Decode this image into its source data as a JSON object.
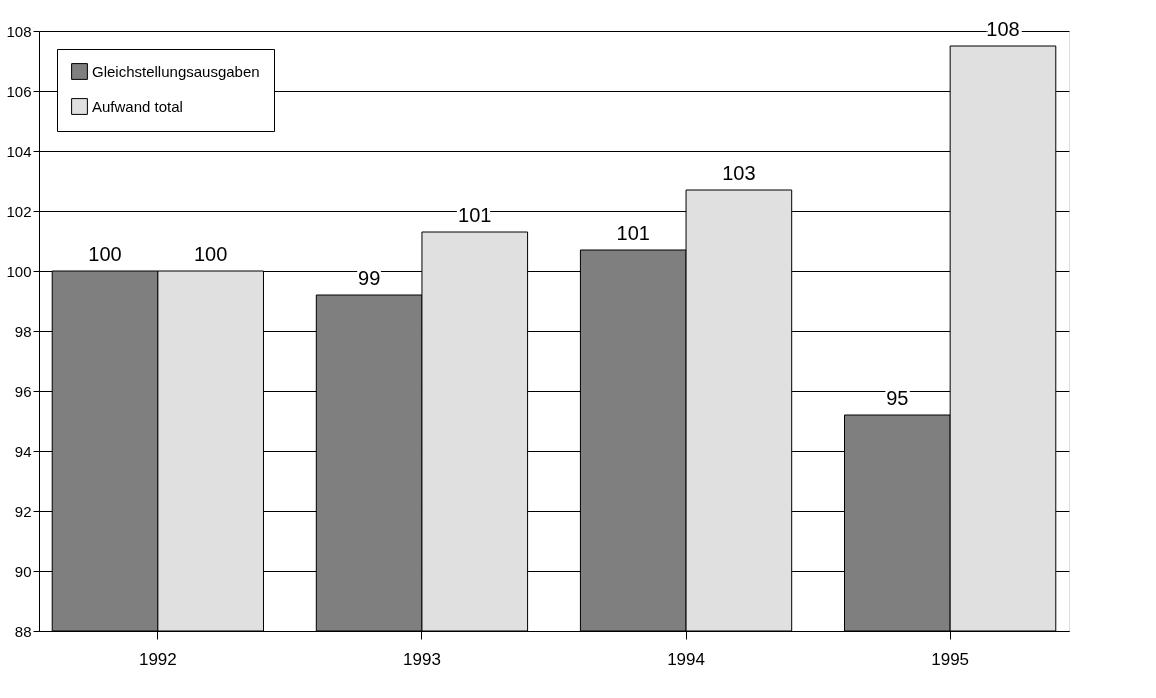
{
  "chart_data": {
    "type": "bar",
    "categories": [
      "1992",
      "1993",
      "1994",
      "1995"
    ],
    "series": [
      {
        "name": "Gleichstellungsausgaben",
        "color": "#7f7f7f",
        "values": [
          100,
          99.2,
          100.7,
          95.2
        ],
        "value_labels": [
          "100",
          "99",
          "101",
          "95"
        ]
      },
      {
        "name": "Aufwand total",
        "color": "#e0e0e0",
        "values": [
          100,
          101.3,
          102.7,
          107.5
        ],
        "value_labels": [
          "100",
          "101",
          "103",
          "108"
        ]
      }
    ],
    "ylim": [
      88,
      108
    ],
    "yticks": [
      88,
      90,
      92,
      94,
      96,
      98,
      100,
      102,
      104,
      106,
      108
    ],
    "grid": "y",
    "legend": "top left"
  }
}
